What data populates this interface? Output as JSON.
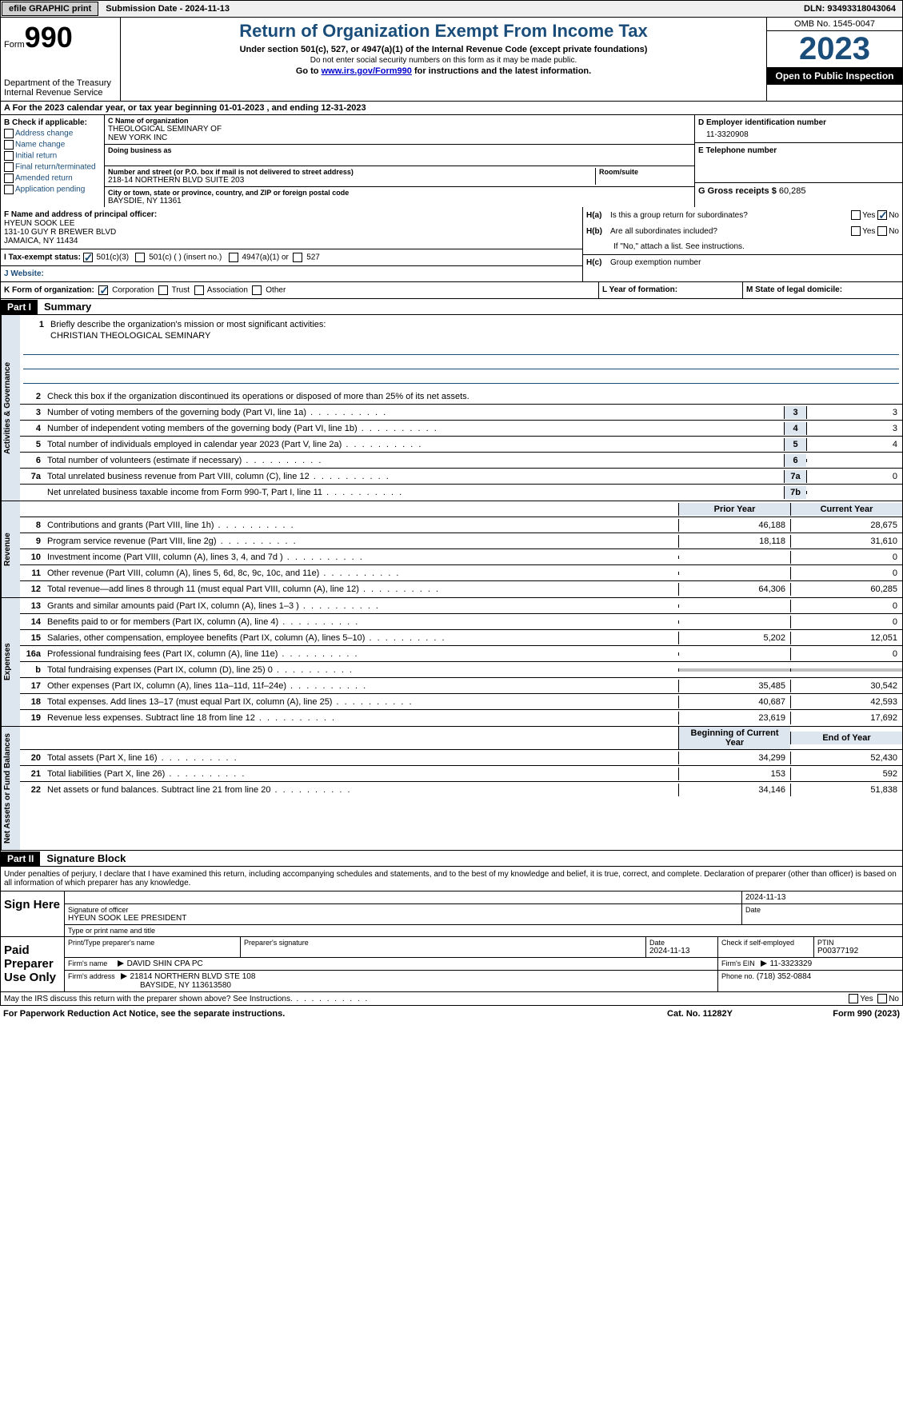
{
  "topbar": {
    "efile_btn": "efile GRAPHIC print",
    "submission": "Submission Date - 2024-11-13",
    "dln": "DLN: 93493318043064"
  },
  "header": {
    "form_label": "Form",
    "form_num": "990",
    "dept": "Department of the Treasury\nInternal Revenue Service",
    "title": "Return of Organization Exempt From Income Tax",
    "sub1": "Under section 501(c), 527, or 4947(a)(1) of the Internal Revenue Code (except private foundations)",
    "sub2": "Do not enter social security numbers on this form as it may be made public.",
    "sub3_pre": "Go to ",
    "sub3_link": "www.irs.gov/Form990",
    "sub3_post": " for instructions and the latest information.",
    "omb": "OMB No. 1545-0047",
    "year": "2023",
    "open": "Open to Public Inspection"
  },
  "period": {
    "label_a": "A For the 2023 calendar year, or tax year beginning ",
    "begin": "01-01-2023",
    "mid": " , and ending ",
    "end": "12-31-2023"
  },
  "box_b": {
    "label": "B Check if applicable:",
    "opts": [
      "Address change",
      "Name change",
      "Initial return",
      "Final return/terminated",
      "Amended return",
      "Application pending"
    ]
  },
  "box_c": {
    "name_label": "C Name of organization",
    "name": "THEOLOGICAL SEMINARY OF\nNEW YORK INC",
    "dba_label": "Doing business as",
    "addr_label": "Number and street (or P.O. box if mail is not delivered to street address)",
    "addr": "218-14 NORTHERN BLVD SUITE 203",
    "room_label": "Room/suite",
    "city_label": "City or town, state or province, country, and ZIP or foreign postal code",
    "city": "BAYSDIE, NY  11361"
  },
  "box_d": {
    "label": "D Employer identification number",
    "val": "11-3320908"
  },
  "box_e": {
    "label": "E Telephone number"
  },
  "box_g": {
    "label": "G Gross receipts $",
    "val": "60,285"
  },
  "box_f": {
    "label": "F  Name and address of principal officer:",
    "name": "HYEUN SOOK LEE",
    "addr1": "131-10 GUY R BREWER BLVD",
    "addr2": "JAMAICA, NY  11434"
  },
  "box_h": {
    "a_label": "H(a)",
    "a_text": "Is this a group return for subordinates?",
    "b_label": "H(b)",
    "b_text": "Are all subordinates included?",
    "b_note": "If \"No,\" attach a list. See instructions.",
    "c_label": "H(c)",
    "c_text": "Group exemption number",
    "yes": "Yes",
    "no": "No"
  },
  "box_i": {
    "label": "I  Tax-exempt status:",
    "opts": [
      "501(c)(3)",
      "501(c) (  ) (insert no.)",
      "4947(a)(1) or",
      "527"
    ]
  },
  "box_j": {
    "label": "J  Website:"
  },
  "box_k": {
    "label": "K Form of organization:",
    "opts": [
      "Corporation",
      "Trust",
      "Association",
      "Other"
    ]
  },
  "box_l": {
    "label": "L Year of formation:"
  },
  "box_m": {
    "label": "M State of legal domicile:"
  },
  "part1": {
    "header": "Part I",
    "title": "Summary",
    "mission_label": "Briefly describe the organization's mission or most significant activities:",
    "mission": "CHRISTIAN THEOLOGICAL SEMINARY",
    "line2": "Check this box          if the organization discontinued its operations or disposed of more than 25% of its net assets.",
    "prior_head": "Prior Year",
    "curr_head": "Current Year",
    "begin_head": "Beginning of Current Year",
    "end_head": "End of Year",
    "sections": {
      "governance": "Activities & Governance",
      "revenue": "Revenue",
      "expenses": "Expenses",
      "net": "Net Assets or Fund Balances"
    },
    "gov_lines": [
      {
        "n": "3",
        "t": "Number of voting members of the governing body (Part VI, line 1a)",
        "box": "3",
        "v": "3"
      },
      {
        "n": "4",
        "t": "Number of independent voting members of the governing body (Part VI, line 1b)",
        "box": "4",
        "v": "3"
      },
      {
        "n": "5",
        "t": "Total number of individuals employed in calendar year 2023 (Part V, line 2a)",
        "box": "5",
        "v": "4"
      },
      {
        "n": "6",
        "t": "Total number of volunteers (estimate if necessary)",
        "box": "6",
        "v": ""
      },
      {
        "n": "7a",
        "t": "Total unrelated business revenue from Part VIII, column (C), line 12",
        "box": "7a",
        "v": "0"
      },
      {
        "n": "",
        "t": "Net unrelated business taxable income from Form 990-T, Part I, line 11",
        "box": "7b",
        "v": ""
      }
    ],
    "rev_lines": [
      {
        "n": "8",
        "t": "Contributions and grants (Part VIII, line 1h)",
        "p": "46,188",
        "c": "28,675"
      },
      {
        "n": "9",
        "t": "Program service revenue (Part VIII, line 2g)",
        "p": "18,118",
        "c": "31,610"
      },
      {
        "n": "10",
        "t": "Investment income (Part VIII, column (A), lines 3, 4, and 7d )",
        "p": "",
        "c": "0"
      },
      {
        "n": "11",
        "t": "Other revenue (Part VIII, column (A), lines 5, 6d, 8c, 9c, 10c, and 11e)",
        "p": "",
        "c": "0"
      },
      {
        "n": "12",
        "t": "Total revenue—add lines 8 through 11 (must equal Part VIII, column (A), line 12)",
        "p": "64,306",
        "c": "60,285"
      }
    ],
    "exp_lines": [
      {
        "n": "13",
        "t": "Grants and similar amounts paid (Part IX, column (A), lines 1–3 )",
        "p": "",
        "c": "0"
      },
      {
        "n": "14",
        "t": "Benefits paid to or for members (Part IX, column (A), line 4)",
        "p": "",
        "c": "0"
      },
      {
        "n": "15",
        "t": "Salaries, other compensation, employee benefits (Part IX, column (A), lines 5–10)",
        "p": "5,202",
        "c": "12,051"
      },
      {
        "n": "16a",
        "t": "Professional fundraising fees (Part IX, column (A), line 11e)",
        "p": "",
        "c": "0"
      },
      {
        "n": "b",
        "t": "Total fundraising expenses (Part IX, column (D), line 25) 0",
        "p": "GREY",
        "c": "GREY"
      },
      {
        "n": "17",
        "t": "Other expenses (Part IX, column (A), lines 11a–11d, 11f–24e)",
        "p": "35,485",
        "c": "30,542"
      },
      {
        "n": "18",
        "t": "Total expenses. Add lines 13–17 (must equal Part IX, column (A), line 25)",
        "p": "40,687",
        "c": "42,593"
      },
      {
        "n": "19",
        "t": "Revenue less expenses. Subtract line 18 from line 12",
        "p": "23,619",
        "c": "17,692"
      }
    ],
    "net_lines": [
      {
        "n": "20",
        "t": "Total assets (Part X, line 16)",
        "p": "34,299",
        "c": "52,430"
      },
      {
        "n": "21",
        "t": "Total liabilities (Part X, line 26)",
        "p": "153",
        "c": "592"
      },
      {
        "n": "22",
        "t": "Net assets or fund balances. Subtract line 21 from line 20",
        "p": "34,146",
        "c": "51,838"
      }
    ]
  },
  "part2": {
    "header": "Part II",
    "title": "Signature Block",
    "penalty": "Under penalties of perjury, I declare that I have examined this return, including accompanying schedules and statements, and to the best of my knowledge and belief, it is true, correct, and complete. Declaration of preparer (other than officer) is based on all information of which preparer has any knowledge.",
    "sign_here": "Sign Here",
    "sig_officer": "Signature of officer",
    "officer_name": "HYEUN SOOK LEE  PRESIDENT",
    "type_label": "Type or print name and title",
    "date_label": "Date",
    "date_val": "2024-11-13",
    "paid": "Paid Preparer Use Only",
    "prep_name_label": "Print/Type preparer's name",
    "prep_sig_label": "Preparer's signature",
    "prep_date": "2024-11-13",
    "self_emp": "Check          if self-employed",
    "ptin_label": "PTIN",
    "ptin": "P00377192",
    "firm_name_label": "Firm's name",
    "firm_name": "DAVID SHIN CPA PC",
    "firm_ein_label": "Firm's EIN",
    "firm_ein": "11-3323329",
    "firm_addr_label": "Firm's address",
    "firm_addr1": "21814 NORTHERN BLVD STE 108",
    "firm_addr2": "BAYSIDE, NY  113613580",
    "phone_label": "Phone no.",
    "phone": "(718) 352-0884"
  },
  "footer": {
    "discuss": "May the IRS discuss this return with the preparer shown above? See Instructions.",
    "yes": "Yes",
    "no": "No",
    "paperwork": "For Paperwork Reduction Act Notice, see the separate instructions.",
    "cat": "Cat. No. 11282Y",
    "form": "Form 990 (2023)"
  }
}
